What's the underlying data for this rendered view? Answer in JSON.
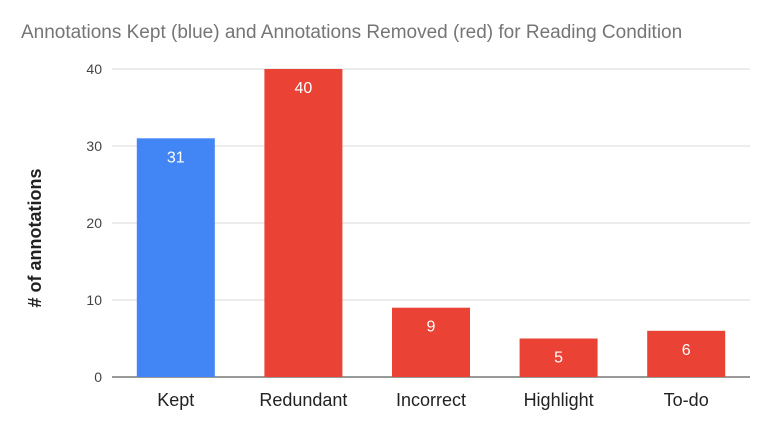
{
  "chart_data": {
    "type": "bar",
    "title": "Annotations Kept (blue) and Annotations Removed (red) for Reading Condition",
    "xlabel": "",
    "ylabel": "# of annotations",
    "categories": [
      "Kept",
      "Redundant",
      "Incorrect",
      "Highlight",
      "To-do"
    ],
    "values": [
      31,
      40,
      9,
      5,
      6
    ],
    "bar_colors": [
      "#4285f4",
      "#ea4335",
      "#ea4335",
      "#ea4335",
      "#ea4335"
    ],
    "ylim": [
      0,
      40
    ],
    "yticks": [
      0,
      10,
      20,
      30,
      40
    ],
    "grid": true,
    "legend": "none",
    "data_labels": true
  }
}
